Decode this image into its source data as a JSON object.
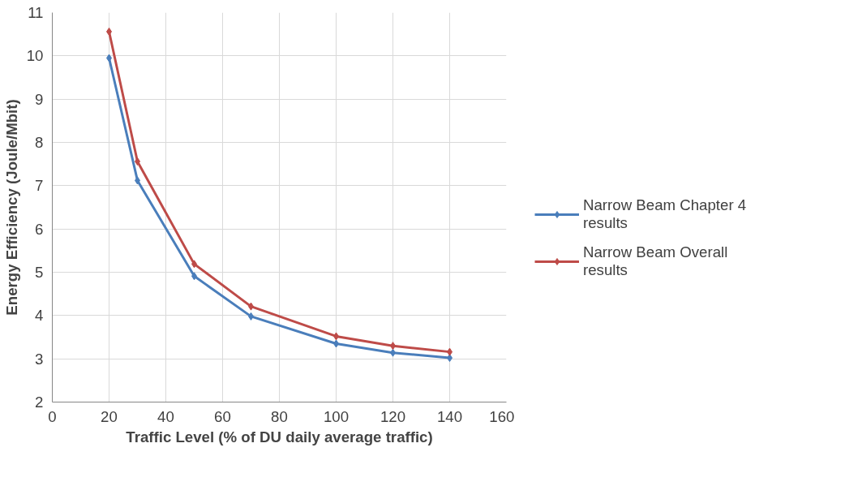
{
  "chart_data": {
    "type": "line",
    "xlabel": "Traffic Level (% of DU daily average traffic)",
    "ylabel": "Energy Efficiency (Joule/Mbit)",
    "x": [
      20,
      30,
      50,
      70,
      100,
      120,
      140
    ],
    "series": [
      {
        "name": "Narrow Beam Chapter 4 results",
        "color": "#4a7ebb",
        "values": [
          9.95,
          7.12,
          4.91,
          3.98,
          3.35,
          3.14,
          3.02
        ]
      },
      {
        "name": "Narrow Beam Overall results",
        "color": "#be4b48",
        "values": [
          10.56,
          7.56,
          5.19,
          4.21,
          3.52,
          3.3,
          3.16
        ]
      }
    ],
    "xlim": [
      0,
      160
    ],
    "xticks": [
      0,
      20,
      40,
      60,
      80,
      100,
      120,
      140,
      160
    ],
    "ylim": [
      2,
      11
    ],
    "yticks": [
      2,
      3,
      4,
      5,
      6,
      7,
      8,
      9,
      10,
      11
    ],
    "grid": true,
    "legend": "right",
    "marker": "diamond",
    "line_style": "solid"
  }
}
